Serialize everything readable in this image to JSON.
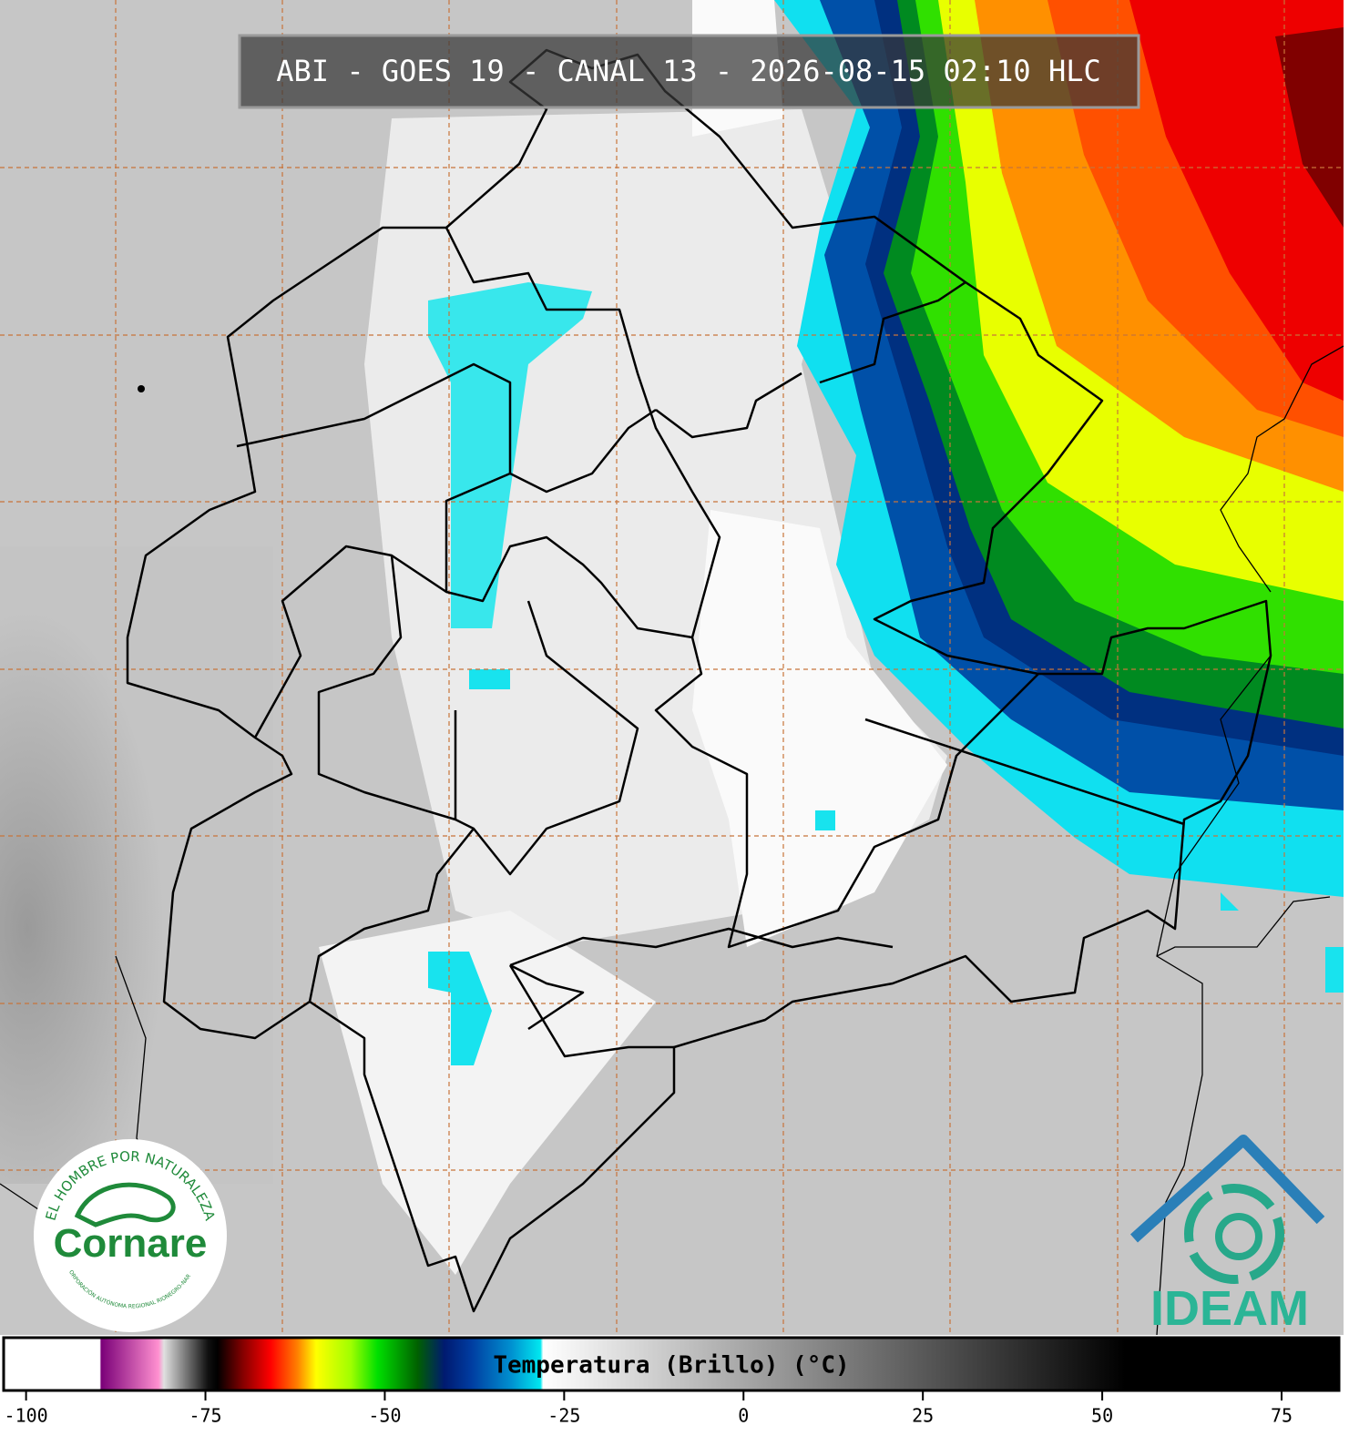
{
  "header": {
    "title": "ABI - GOES 19 - CANAL 13 - 2026-08-15 02:10 HLC"
  },
  "logos": {
    "cornare": {
      "motto": "EL HOMBRE POR NATURALEZA",
      "name": "Cornare",
      "subtitle": "CORPORACIÓN AUTÓNOMA REGIONAL RIONEGRO-NARE"
    },
    "ideam": {
      "name": "IDEAM"
    }
  },
  "colorbar": {
    "label": "Temperatura (Brillo) (°C)",
    "xlim": [
      -103,
      83
    ],
    "xticks": [
      -100,
      -75,
      -50,
      -25,
      0,
      25,
      50,
      75
    ]
  }
}
